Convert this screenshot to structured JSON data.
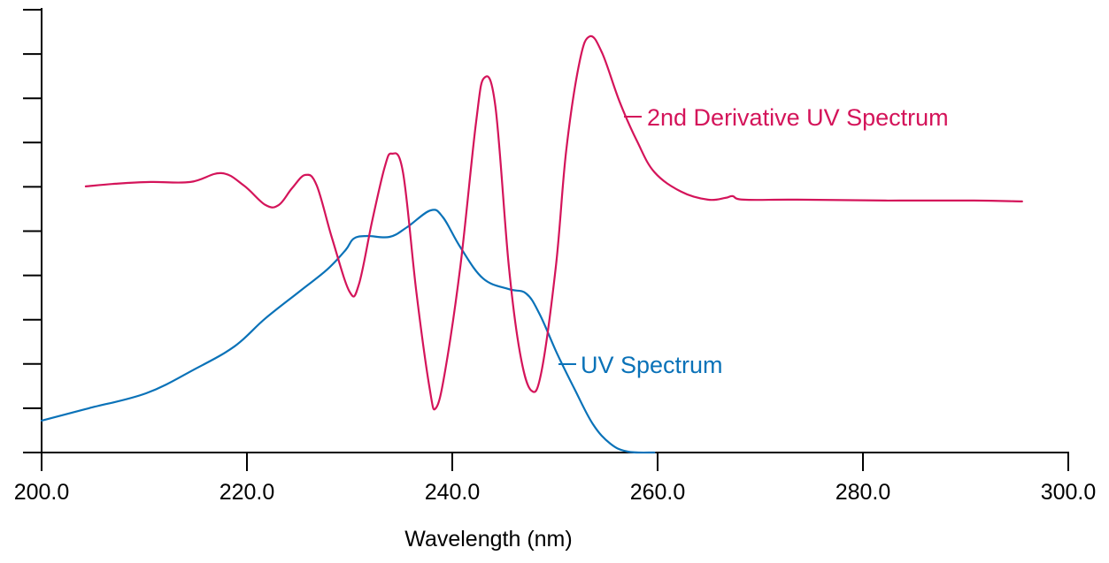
{
  "chart_data": {
    "type": "line",
    "title": "",
    "xlabel": "Wavelength (nm)",
    "ylabel": "",
    "xlim": [
      200,
      300
    ],
    "ylim": [
      0,
      10
    ],
    "x_ticks": [
      "200.0",
      "220.0",
      "240.0",
      "260.0",
      "280.0",
      "300.0"
    ],
    "x_tick_values": [
      200,
      220,
      240,
      260,
      280,
      300
    ],
    "y_tick_values": [
      0,
      1,
      2,
      3,
      4,
      5,
      6,
      7,
      8,
      9,
      10
    ],
    "y_tick_labels_shown": false,
    "y_units": "relative (unlabeled ticks)",
    "grid": false,
    "legend": "inline labels",
    "series": [
      {
        "name": "UV Spectrum",
        "label": "UV Spectrum",
        "color": "#0a72b8",
        "x": [
          200.0,
          204.6,
          210.2,
          214.9,
          218.8,
          221.8,
          225.3,
          227.8,
          229.6,
          230.4,
          231.7,
          233.9,
          235.6,
          237.9,
          239.1,
          240.8,
          243.0,
          245.5,
          247.2,
          248.5,
          250.2,
          251.9,
          253.7,
          255.4,
          257.1,
          259.7
        ],
        "y": [
          0.72,
          1.0,
          1.34,
          1.88,
          2.4,
          3.03,
          3.67,
          4.13,
          4.57,
          4.83,
          4.89,
          4.87,
          5.09,
          5.47,
          5.31,
          4.63,
          3.93,
          3.69,
          3.59,
          3.13,
          2.24,
          1.44,
          0.64,
          0.2,
          0.02,
          0.0
        ]
      },
      {
        "name": "2nd Derivative UV Spectrum",
        "label": "2nd Derivative UV Spectrum",
        "color": "#d4145a",
        "x": [
          204.3,
          207.2,
          210.6,
          214.5,
          217.5,
          219.7,
          221.8,
          223.1,
          224.4,
          225.7,
          226.8,
          228.3,
          230.0,
          230.9,
          232.2,
          233.4,
          234.1,
          235.2,
          236.5,
          237.8,
          238.4,
          239.3,
          240.8,
          242.3,
          243.1,
          244.2,
          245.5,
          246.6,
          247.7,
          248.7,
          250.1,
          251.1,
          252.4,
          253.4,
          254.6,
          256.3,
          258.0,
          259.7,
          262.3,
          264.9,
          266.6,
          267.3,
          268.4,
          273.6,
          282.2,
          290.8,
          295.5
        ],
        "y": [
          6.01,
          6.07,
          6.11,
          6.11,
          6.31,
          6.03,
          5.59,
          5.59,
          5.97,
          6.27,
          6.03,
          4.83,
          3.63,
          3.79,
          5.23,
          6.43,
          6.75,
          6.33,
          3.63,
          1.44,
          1.0,
          1.84,
          4.23,
          7.43,
          8.46,
          7.82,
          4.23,
          2.24,
          1.4,
          1.84,
          4.23,
          6.83,
          8.82,
          9.4,
          9.02,
          7.92,
          7.03,
          6.33,
          5.89,
          5.71,
          5.75,
          5.79,
          5.71,
          5.71,
          5.69,
          5.69,
          5.67
        ]
      }
    ]
  }
}
